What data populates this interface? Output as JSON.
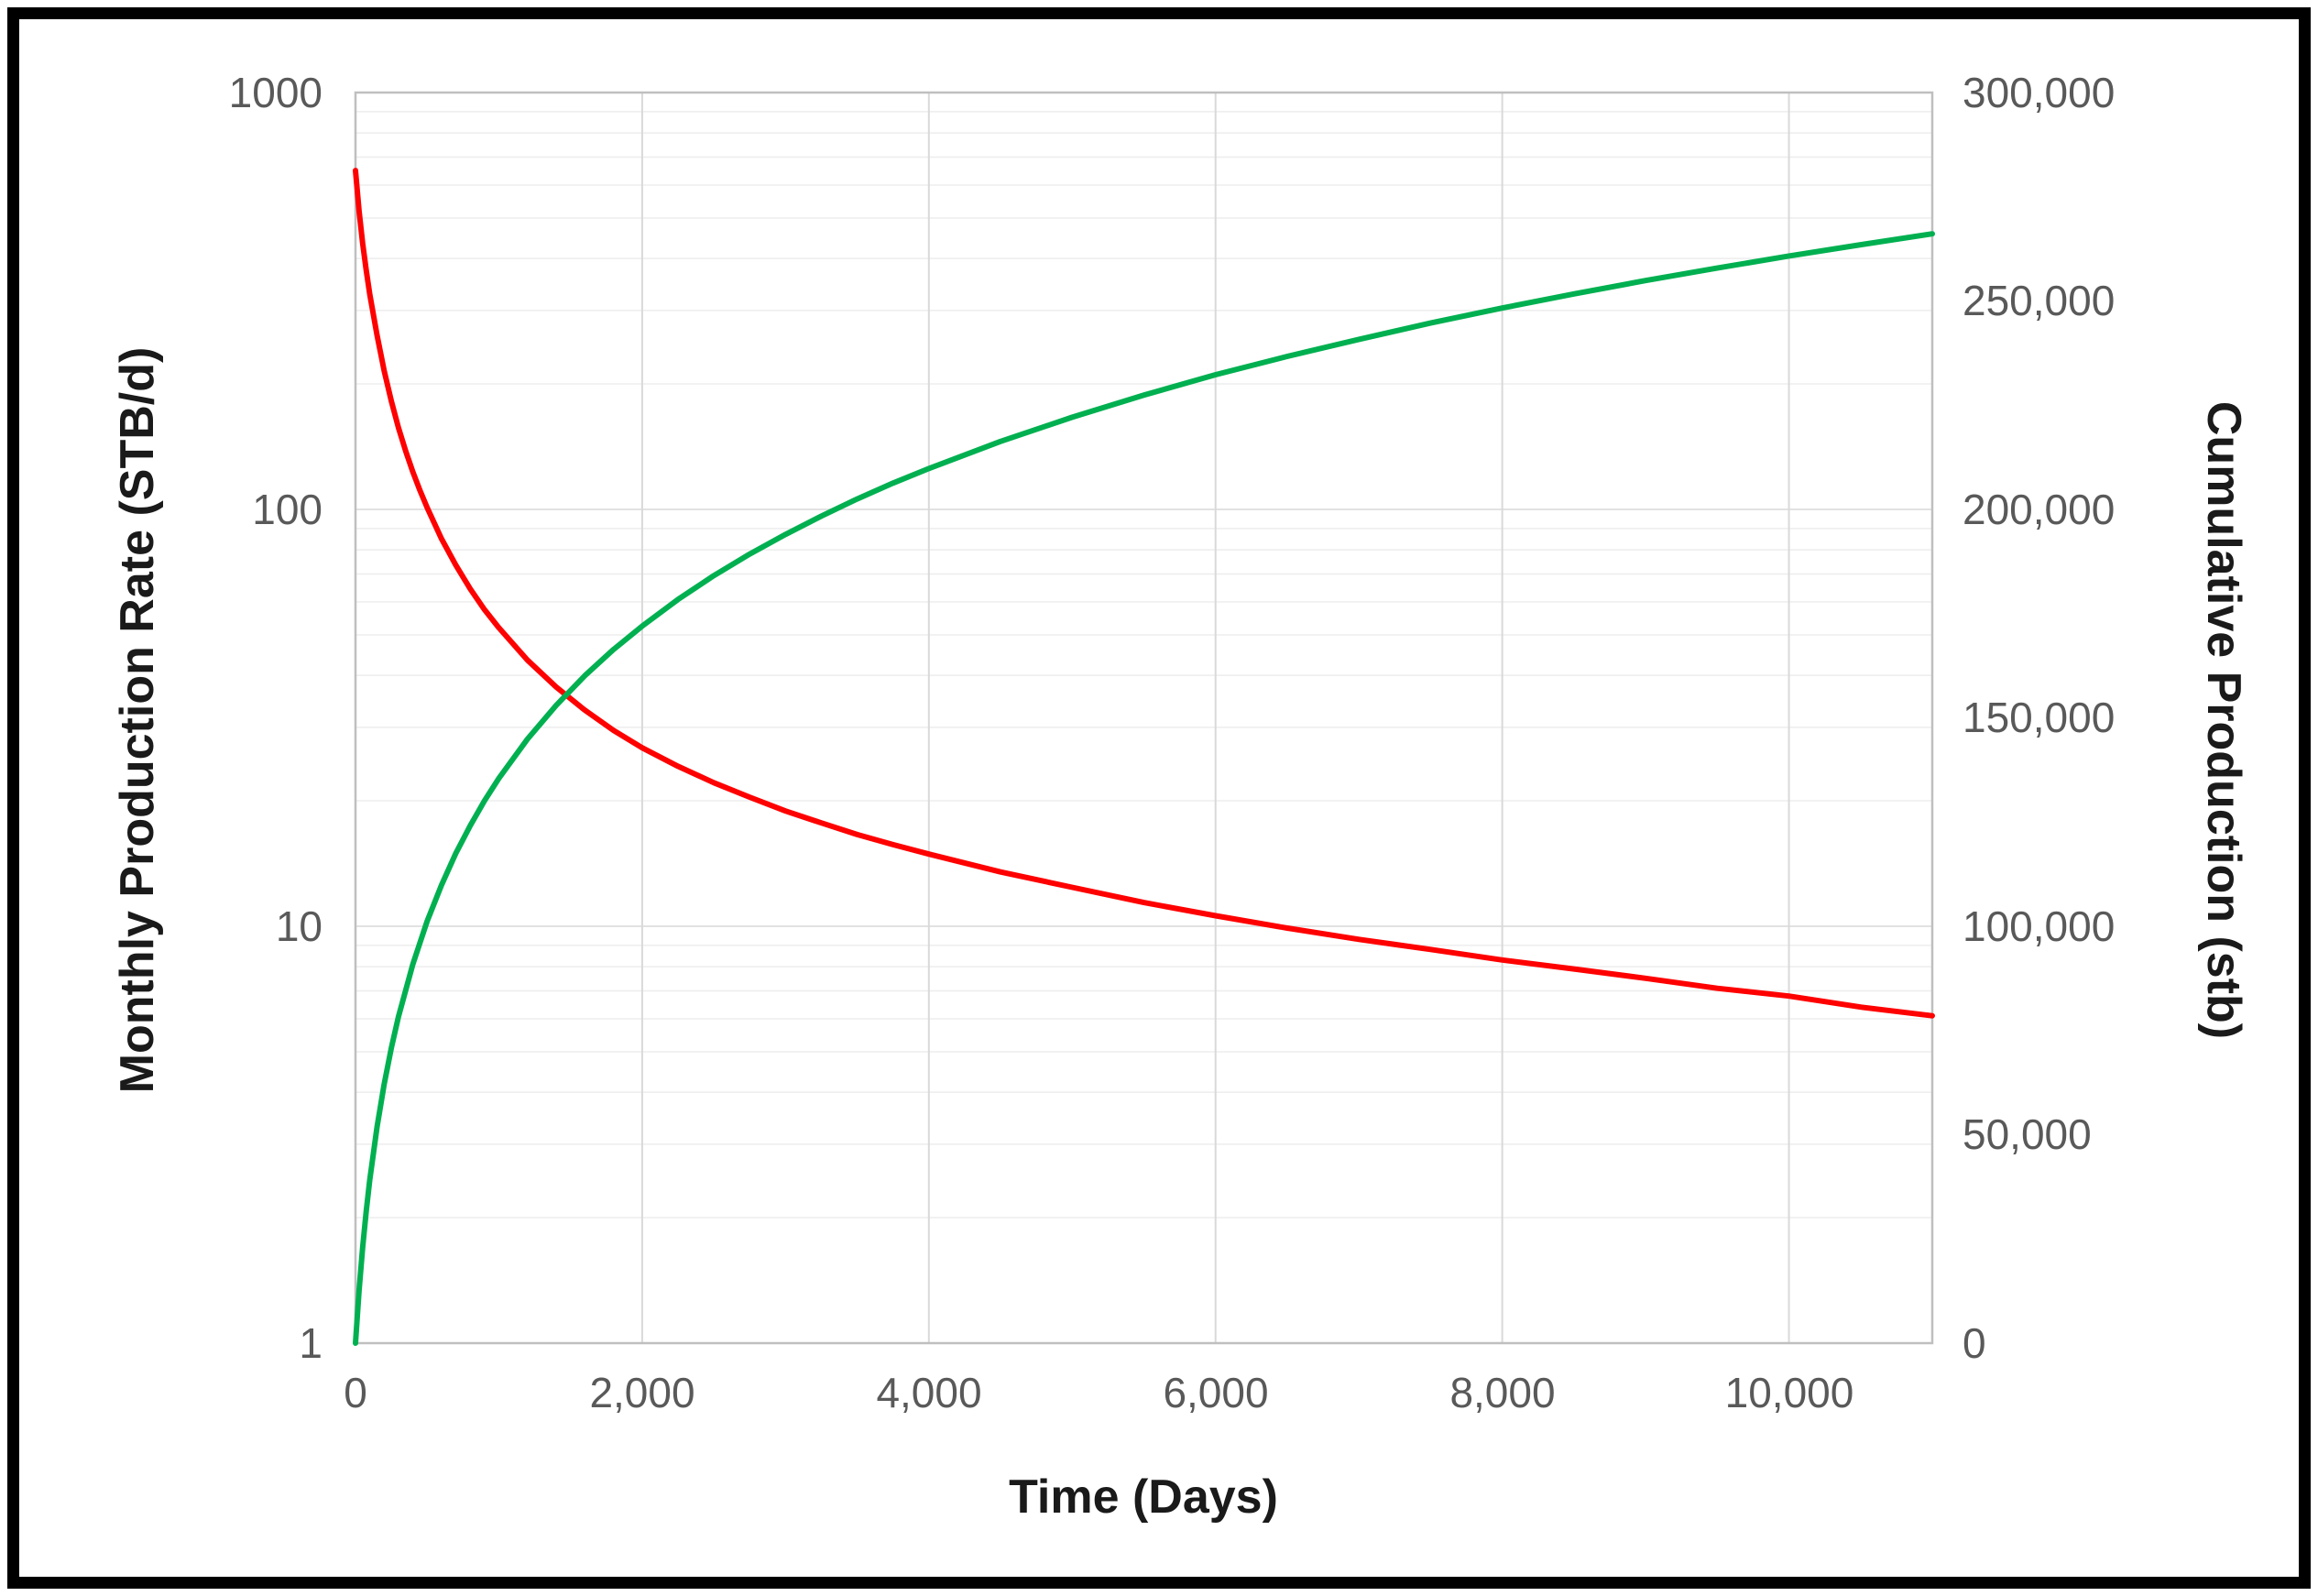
{
  "chart_data": {
    "type": "line",
    "title": "",
    "xlabel": "Time (Days)",
    "ylabel_left": "Monthly Production Rate (STB/d)",
    "ylabel_right": "Cumulative Production (stb)",
    "legend": "none",
    "grid": {
      "vertical": true,
      "horizontal_log_minor": true
    },
    "colors": {
      "rate_series": "#ff0000",
      "cumulative_series": "#00b050",
      "plot_border": "#bfbfbf",
      "grid_vertical": "#d9d9d9",
      "grid_minor": "#ededed",
      "grid_major": "#e2e2e2",
      "tick_text": "#595959",
      "title_text": "#1a1a1a"
    },
    "x_axis": {
      "min": 0,
      "max": 11000,
      "ticks": [
        0,
        2000,
        4000,
        6000,
        8000,
        10000
      ],
      "tick_labels": [
        "0",
        "2,000",
        "4,000",
        "6,000",
        "8,000",
        "10,000"
      ]
    },
    "y_left": {
      "scale": "log",
      "min": 1,
      "max": 1000,
      "tick_labels": [
        "1000",
        "100",
        "10",
        "1"
      ],
      "minor_decades": [
        1,
        10,
        100
      ],
      "major_values": [
        10,
        100
      ]
    },
    "y_right": {
      "scale": "linear",
      "min": 0,
      "max": 300000,
      "tick_labels": [
        "300,000",
        "250,000",
        "200,000",
        "150,000",
        "100,000",
        "50,000",
        "0"
      ]
    },
    "series": [
      {
        "name": "Monthly Production Rate",
        "axis": "left",
        "color": "#ff0000",
        "x": [
          0,
          25,
          50,
          75,
          100,
          150,
          200,
          250,
          300,
          350,
          400,
          450,
          500,
          600,
          700,
          800,
          900,
          1000,
          1200,
          1400,
          1600,
          1800,
          2000,
          2250,
          2500,
          2750,
          3000,
          3250,
          3500,
          3750,
          4000,
          4500,
          5000,
          5500,
          6000,
          6500,
          7000,
          7500,
          8000,
          8500,
          9000,
          9500,
          10000,
          10500,
          11000
        ],
        "y": [
          650,
          520,
          435,
          375,
          328,
          262,
          215,
          182,
          157,
          138,
          123,
          111,
          101,
          85,
          73.5,
          64.5,
          57.5,
          52,
          43.5,
          37.5,
          33,
          29.5,
          26.8,
          24.2,
          22.1,
          20.4,
          18.9,
          17.7,
          16.6,
          15.7,
          14.9,
          13.5,
          12.4,
          11.4,
          10.6,
          9.9,
          9.3,
          8.8,
          8.3,
          7.9,
          7.5,
          7.1,
          6.8,
          6.4,
          6.1
        ]
      },
      {
        "name": "Cumulative Production",
        "axis": "right",
        "color": "#00b050",
        "x": [
          0,
          25,
          50,
          75,
          100,
          150,
          200,
          250,
          300,
          400,
          500,
          600,
          700,
          800,
          900,
          1000,
          1200,
          1400,
          1600,
          1800,
          2000,
          2250,
          2500,
          2750,
          3000,
          3250,
          3500,
          3750,
          4000,
          4500,
          5000,
          5500,
          6000,
          6500,
          7000,
          7500,
          8000,
          8500,
          9000,
          9500,
          10000,
          10500,
          11000
        ],
        "y": [
          0,
          12600,
          22900,
          31600,
          39200,
          51800,
          62100,
          70800,
          78300,
          90900,
          101200,
          109900,
          117500,
          124100,
          130100,
          135500,
          144900,
          153000,
          160100,
          166400,
          172000,
          178400,
          184100,
          189300,
          194000,
          198400,
          202500,
          206300,
          209800,
          216300,
          222100,
          227400,
          232300,
          236700,
          240800,
          244700,
          248300,
          251700,
          254900,
          257900,
          260800,
          263500,
          266100
        ]
      }
    ]
  }
}
